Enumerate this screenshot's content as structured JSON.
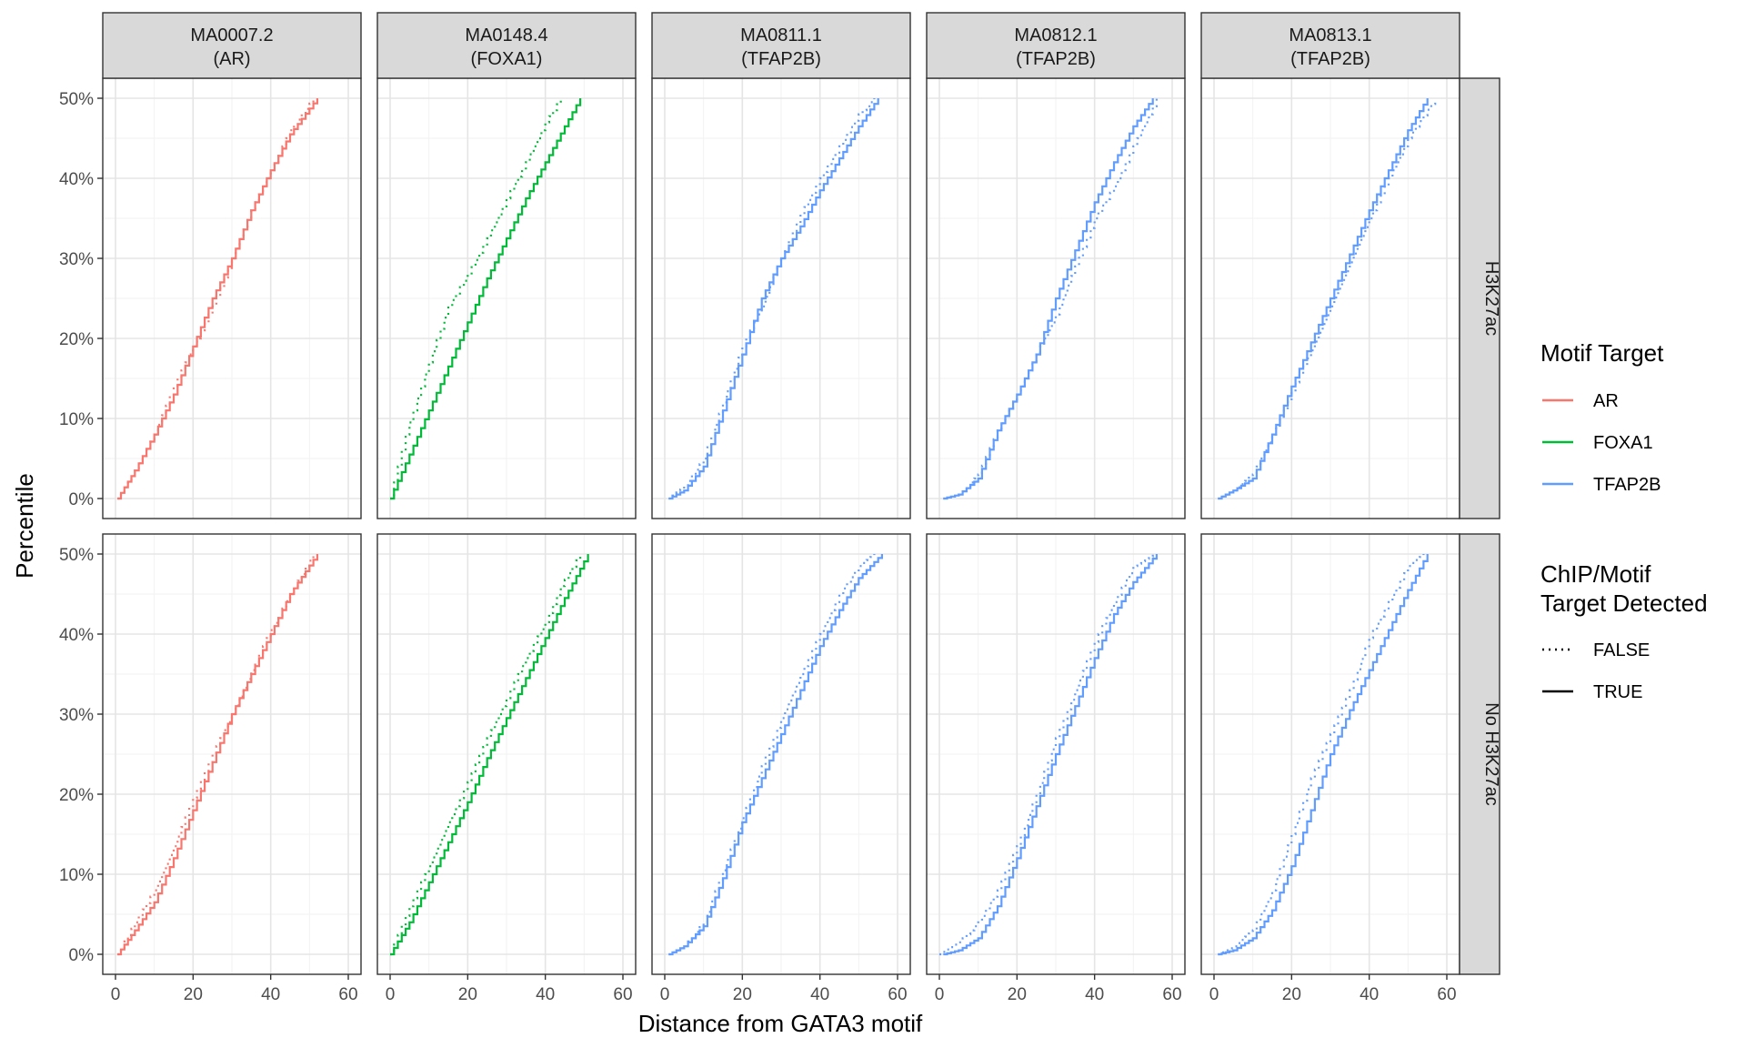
{
  "chart_data": {
    "type": "line",
    "subtype": "faceted-ecdf-step",
    "xlabel": "Distance from GATA3 motif",
    "ylabel": "Percentile",
    "xlim": [
      0,
      60
    ],
    "ylim": [
      0,
      50
    ],
    "x_ticks": [
      0,
      20,
      40,
      60
    ],
    "y_ticks": [
      0,
      10,
      20,
      30,
      40,
      50
    ],
    "y_tick_labels": [
      "0%",
      "10%",
      "20%",
      "30%",
      "40%",
      "50%"
    ],
    "x_tick_labels": [
      "0",
      "20",
      "40",
      "60"
    ],
    "grid": true,
    "facet_columns": [
      {
        "id": "MA0007.2",
        "label_line1": "MA0007.2",
        "label_line2": "(AR)",
        "target": "AR"
      },
      {
        "id": "MA0148.4",
        "label_line1": "MA0148.4",
        "label_line2": "(FOXA1)",
        "target": "FOXA1"
      },
      {
        "id": "MA0811.1",
        "label_line1": "MA0811.1",
        "label_line2": "(TFAP2B)",
        "target": "TFAP2B"
      },
      {
        "id": "MA0812.1",
        "label_line1": "MA0812.1",
        "label_line2": "(TFAP2B)",
        "target": "TFAP2B"
      },
      {
        "id": "MA0813.1",
        "label_line1": "MA0813.1",
        "label_line2": "(TFAP2B)",
        "target": "TFAP2B"
      }
    ],
    "facet_rows": [
      {
        "id": "H3K27ac",
        "label": "H3K27ac"
      },
      {
        "id": "No H3K27ac",
        "label": "No H3K27ac"
      }
    ],
    "colors": {
      "AR": "#F8766D",
      "FOXA1": "#00BA38",
      "TFAP2B": "#619CFF"
    },
    "legend": {
      "placement": "right",
      "color_title": "Motif Target",
      "color_entries": [
        "AR",
        "FOXA1",
        "TFAP2B"
      ],
      "linetype_title_line1": "ChIP/Motif",
      "linetype_title_line2": "Target Detected",
      "linetype_entries": [
        {
          "label": "FALSE",
          "style": "dotted"
        },
        {
          "label": "TRUE",
          "style": "solid"
        }
      ]
    },
    "panels": [
      {
        "row": "H3K27ac",
        "col": "MA0007.2",
        "series": [
          {
            "detected": "TRUE",
            "x": [
              0.5,
              5,
              10,
              15,
              20,
              25,
              30,
              35,
              40,
              45,
              52
            ],
            "y": [
              0,
              3.5,
              8,
              13,
              19,
              25,
              30,
              36,
              41,
              45.5,
              50
            ]
          },
          {
            "detected": "FALSE",
            "x": [
              0.5,
              5,
              10,
              15,
              20,
              25,
              30,
              35,
              40,
              45,
              51
            ],
            "y": [
              0,
              3.5,
              8,
              14,
              19,
              24,
              30,
              36,
              41,
              46,
              50
            ]
          }
        ]
      },
      {
        "row": "H3K27ac",
        "col": "MA0148.4",
        "series": [
          {
            "detected": "TRUE",
            "x": [
              0,
              5,
              10,
              15,
              20,
              25,
              30,
              35,
              40,
              45,
              49
            ],
            "y": [
              0,
              5.5,
              11,
              16.5,
              22,
              27.5,
              32.5,
              37.5,
              42,
              46.5,
              50
            ]
          },
          {
            "detected": "FALSE",
            "x": [
              0,
              4,
              10,
              15,
              20,
              25,
              30,
              35,
              40,
              44
            ],
            "y": [
              0,
              8,
              17,
              24,
              28,
              32.5,
              37.5,
              42,
              47,
              50
            ]
          }
        ]
      },
      {
        "row": "H3K27ac",
        "col": "MA0811.1",
        "series": [
          {
            "detected": "TRUE",
            "x": [
              1,
              5,
              10,
              15,
              20,
              25,
              30,
              35,
              40,
              45,
              50,
              55
            ],
            "y": [
              0,
              1,
              4,
              11,
              18,
              25,
              30,
              34,
              38.5,
              42.5,
              46.5,
              50
            ]
          },
          {
            "detected": "FALSE",
            "x": [
              1,
              5,
              10,
              15,
              20,
              25,
              30,
              35,
              40,
              45,
              50,
              54
            ],
            "y": [
              0,
              1.5,
              5,
              12,
              19,
              24,
              30,
              35.5,
              40,
              44,
              48,
              50
            ]
          }
        ]
      },
      {
        "row": "H3K27ac",
        "col": "MA0812.1",
        "series": [
          {
            "detected": "TRUE",
            "x": [
              1,
              5,
              10,
              15,
              20,
              25,
              30,
              35,
              40,
              45,
              50,
              55
            ],
            "y": [
              0,
              0.5,
              2.5,
              8.5,
              13,
              18,
              25,
              31,
              37,
              42,
              46.5,
              50
            ]
          },
          {
            "detected": "FALSE",
            "x": [
              1,
              5,
              10,
              15,
              20,
              25,
              30,
              35,
              40,
              45,
              50,
              56
            ],
            "y": [
              0,
              0.5,
              3,
              8.5,
              13,
              18,
              23,
              29,
              35,
              39,
              44,
              50
            ]
          }
        ]
      },
      {
        "row": "H3K27ac",
        "col": "MA0813.1",
        "series": [
          {
            "detected": "TRUE",
            "x": [
              1,
              5,
              10,
              15,
              20,
              25,
              30,
              35,
              40,
              45,
              50,
              55
            ],
            "y": [
              0,
              1,
              2.5,
              8,
              14,
              19.5,
              25,
              30.5,
              36,
              41,
              46,
              50
            ]
          },
          {
            "detected": "FALSE",
            "x": [
              1,
              5,
              10,
              15,
              20,
              25,
              30,
              35,
              40,
              45,
              50,
              57
            ],
            "y": [
              0,
              1,
              3,
              8,
              13.5,
              18.5,
              24,
              29.5,
              35,
              40,
              45,
              50
            ]
          }
        ]
      },
      {
        "row": "No H3K27ac",
        "col": "MA0007.2",
        "series": [
          {
            "detected": "TRUE",
            "x": [
              0.5,
              5,
              10,
              15,
              20,
              25,
              30,
              35,
              40,
              45,
              52
            ],
            "y": [
              0,
              3,
              6.5,
              12,
              18,
              24,
              30,
              35,
              40,
              45,
              50
            ]
          },
          {
            "detected": "FALSE",
            "x": [
              0.5,
              5,
              10,
              15,
              20,
              25,
              30,
              35,
              40,
              45,
              51
            ],
            "y": [
              0,
              4,
              8,
              13.5,
              19.5,
              25,
              30,
              35.5,
              40.5,
              45,
              50
            ]
          }
        ]
      },
      {
        "row": "No H3K27ac",
        "col": "MA0148.4",
        "series": [
          {
            "detected": "TRUE",
            "x": [
              0,
              5,
              10,
              15,
              20,
              25,
              30,
              35,
              40,
              45,
              51
            ],
            "y": [
              0,
              4,
              9,
              14,
              19,
              24.5,
              29.5,
              34.5,
              39.5,
              44.5,
              50
            ]
          },
          {
            "detected": "FALSE",
            "x": [
              0,
              5,
              10,
              15,
              20,
              25,
              30,
              35,
              40,
              44,
              49
            ],
            "y": [
              0,
              6,
              11,
              16.5,
              21.5,
              27,
              32,
              37,
              41.5,
              46,
              50
            ]
          }
        ]
      },
      {
        "row": "No H3K27ac",
        "col": "MA0811.1",
        "series": [
          {
            "detected": "TRUE",
            "x": [
              1,
              5,
              10,
              15,
              20,
              25,
              30,
              35,
              40,
              45,
              50,
              56
            ],
            "y": [
              0,
              1,
              3.5,
              9.5,
              16.5,
              22,
              27.5,
              33,
              38.5,
              43,
              47,
              50
            ]
          },
          {
            "detected": "FALSE",
            "x": [
              1,
              5,
              10,
              15,
              20,
              25,
              30,
              35,
              40,
              45,
              50,
              54
            ],
            "y": [
              0,
              1,
              4,
              10.5,
              17,
              23.5,
              29.5,
              35,
              40,
              45,
              48.5,
              50
            ]
          }
        ]
      },
      {
        "row": "No H3K27ac",
        "col": "MA0812.1",
        "series": [
          {
            "detected": "TRUE",
            "x": [
              1,
              5,
              10,
              15,
              20,
              25,
              30,
              35,
              40,
              45,
              50,
              56
            ],
            "y": [
              0,
              0.5,
              2,
              6,
              12,
              18.5,
              25,
              31,
              37,
              42.5,
              46.5,
              50
            ]
          },
          {
            "detected": "FALSE",
            "x": [
              0,
              5,
              10,
              15,
              20,
              25,
              30,
              35,
              40,
              45,
              50,
              55
            ],
            "y": [
              0,
              1.5,
              4,
              8,
              13.5,
              20,
              27,
              33,
              39,
              44,
              48.5,
              50
            ]
          }
        ]
      },
      {
        "row": "No H3K27ac",
        "col": "MA0813.1",
        "series": [
          {
            "detected": "TRUE",
            "x": [
              1,
              5,
              10,
              15,
              20,
              25,
              30,
              35,
              40,
              45,
              50,
              55
            ],
            "y": [
              0,
              0.5,
              2,
              5.5,
              11,
              18,
              25,
              30.5,
              35.5,
              40.5,
              45.5,
              50
            ]
          },
          {
            "detected": "FALSE",
            "x": [
              1,
              5,
              10,
              15,
              20,
              25,
              30,
              35,
              40,
              45,
              50,
              54
            ],
            "y": [
              0,
              1,
              3,
              8,
              15,
              22,
              27.5,
              33,
              39.5,
              44,
              48.5,
              50
            ]
          }
        ]
      }
    ]
  }
}
